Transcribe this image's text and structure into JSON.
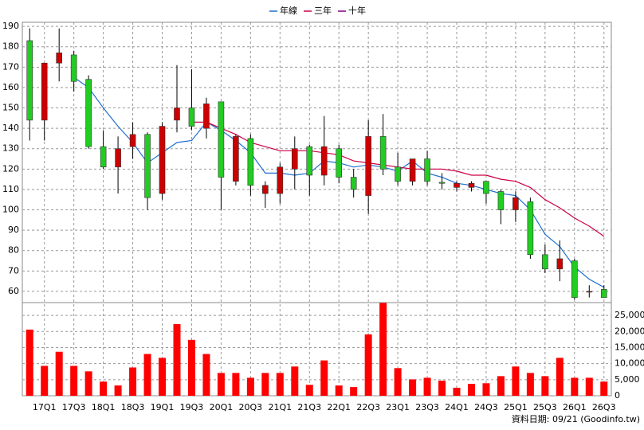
{
  "chart_data": {
    "type": "candlestick",
    "categories": [
      null,
      "17Q1",
      null,
      "17Q3",
      null,
      "18Q1",
      null,
      "18Q3",
      null,
      "19Q1",
      null,
      "19Q3",
      null,
      "20Q1",
      null,
      "20Q3",
      null,
      "21Q1",
      null,
      "21Q3",
      null,
      "22Q1",
      null,
      "22Q3",
      null,
      "23Q1",
      null,
      "23Q3",
      null,
      "24Q1",
      null,
      "24Q3",
      null,
      "25Q1",
      null,
      "25Q3",
      null,
      "26Q1",
      null,
      "26Q3"
    ],
    "open": [
      183,
      144,
      172,
      176,
      164,
      131,
      121,
      131,
      137,
      108,
      144,
      150,
      140,
      153,
      114,
      135,
      108,
      108,
      120,
      131,
      117,
      130,
      116,
      107,
      136,
      121,
      114,
      125,
      113.5,
      111,
      111,
      114,
      109,
      100,
      104,
      78,
      71,
      75,
      60,
      61
    ],
    "high": [
      189,
      172,
      189,
      178,
      166,
      139,
      136,
      143,
      138,
      143,
      171,
      169,
      155,
      153,
      137,
      137,
      114,
      123,
      136,
      132,
      146,
      132,
      120,
      144,
      147,
      128,
      125,
      129,
      118,
      114,
      114,
      114,
      110,
      109,
      106,
      83,
      85,
      76,
      63,
      63
    ],
    "low": [
      134,
      134,
      163,
      158,
      130,
      120,
      108,
      125,
      100,
      105,
      138,
      139,
      135,
      100,
      112,
      107,
      101,
      103,
      110,
      107,
      112,
      113,
      106,
      98,
      117,
      112,
      112,
      112,
      110,
      109,
      109,
      103,
      93,
      94,
      76,
      69,
      65,
      56,
      57,
      57
    ],
    "close": [
      144,
      172,
      177,
      163,
      131,
      121,
      130,
      137,
      106,
      141,
      150,
      141,
      152,
      116,
      136,
      112,
      112,
      121,
      130,
      117,
      131,
      116,
      110,
      136,
      120,
      114,
      125,
      114,
      113,
      113,
      113,
      108,
      100,
      106,
      78,
      71,
      76,
      57,
      60,
      57
    ],
    "up_color": "#cc0000",
    "down_color": "#22cc22",
    "series": [
      {
        "name": "年線",
        "color": "#1f6fd0",
        "values": [
          null,
          null,
          null,
          165,
          160,
          150,
          141,
          133,
          123,
          128,
          133,
          134,
          143,
          139,
          134,
          128,
          118,
          118,
          117,
          118,
          124,
          123,
          121,
          122,
          121,
          119,
          124,
          118,
          116,
          113,
          112,
          110,
          108,
          107,
          100,
          88,
          82,
          72,
          66,
          62
        ]
      },
      {
        "name": "三年",
        "color": "#cc0044",
        "values": [
          null,
          null,
          null,
          null,
          null,
          null,
          null,
          null,
          null,
          null,
          null,
          143,
          143,
          140,
          137,
          133,
          131,
          129,
          129,
          129,
          128,
          127,
          124,
          123,
          122,
          121,
          120,
          120,
          120,
          119,
          117,
          117,
          115,
          114,
          111,
          105,
          101,
          96,
          92,
          87
        ]
      },
      {
        "name": "十年",
        "color": "#800080",
        "values": [
          null,
          null,
          null,
          null,
          null,
          null,
          null,
          null,
          null,
          null,
          null,
          null,
          null,
          null,
          null,
          null,
          null,
          null,
          null,
          null,
          null,
          null,
          null,
          null,
          null,
          null,
          null,
          null,
          null,
          null,
          null,
          null,
          null,
          null,
          null,
          null,
          null,
          null,
          null,
          null
        ]
      }
    ],
    "ylim": [
      54.5,
      192
    ],
    "yticks": [
      60,
      70,
      80,
      90,
      100,
      110,
      120,
      130,
      140,
      150,
      160,
      170,
      180,
      190
    ],
    "volume": {
      "color": "#ff0000",
      "values": [
        20600,
        9300,
        13700,
        9300,
        7600,
        4400,
        3200,
        8800,
        13000,
        11800,
        22300,
        17400,
        13000,
        7100,
        7100,
        5600,
        7100,
        7100,
        9100,
        3400,
        11000,
        3200,
        2700,
        19100,
        28900,
        8600,
        5100,
        5600,
        4700,
        2500,
        3700,
        3900,
        6100,
        9100,
        7100,
        6100,
        11800,
        5600,
        5600,
        4400
      ],
      "ylim": [
        0,
        29000
      ],
      "yticks": [
        0,
        {
          "value": 5000,
          "label": "5,000"
        },
        {
          "value": 10000,
          "label": "10,000"
        },
        {
          "value": 15000,
          "label": "15,000"
        },
        {
          "value": 20000,
          "label": "20,000"
        },
        {
          "value": 25000,
          "label": "25,000"
        }
      ]
    },
    "grid": true,
    "footer": "資料日期: 09/21 (Goodinfo.tw)"
  }
}
